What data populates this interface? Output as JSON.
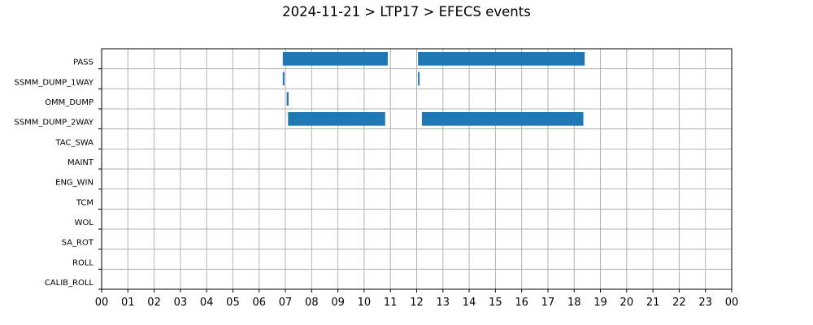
{
  "chart_data": {
    "type": "bar",
    "orientation": "horizontal",
    "title": "2024-11-21 > LTP17 > EFECS events",
    "xlabel": "",
    "ylabel": "",
    "xlim": [
      0,
      24
    ],
    "x_tick_labels": [
      "00",
      "01",
      "02",
      "03",
      "04",
      "05",
      "06",
      "07",
      "08",
      "09",
      "10",
      "11",
      "12",
      "13",
      "14",
      "15",
      "16",
      "17",
      "18",
      "19",
      "20",
      "21",
      "22",
      "23",
      "00"
    ],
    "categories": [
      "PASS",
      "SSMM_DUMP_1WAY",
      "OMM_DUMP",
      "SSMM_DUMP_2WAY",
      "TAC_SWA",
      "MAINT",
      "ENG_WIN",
      "TCM",
      "WOL",
      "SA_ROT",
      "ROLL",
      "CALIB_ROLL"
    ],
    "grid": true,
    "bar_color": "#1f77b4",
    "events": [
      {
        "category": "PASS",
        "start": 6.9,
        "end": 10.9
      },
      {
        "category": "PASS",
        "start": 12.05,
        "end": 18.4
      },
      {
        "category": "SSMM_DUMP_1WAY",
        "start": 6.9,
        "end": 6.96
      },
      {
        "category": "SSMM_DUMP_1WAY",
        "start": 12.05,
        "end": 12.1
      },
      {
        "category": "OMM_DUMP",
        "start": 7.05,
        "end": 7.12
      },
      {
        "category": "SSMM_DUMP_2WAY",
        "start": 7.1,
        "end": 10.8
      },
      {
        "category": "SSMM_DUMP_2WAY",
        "start": 12.2,
        "end": 18.35
      }
    ]
  }
}
